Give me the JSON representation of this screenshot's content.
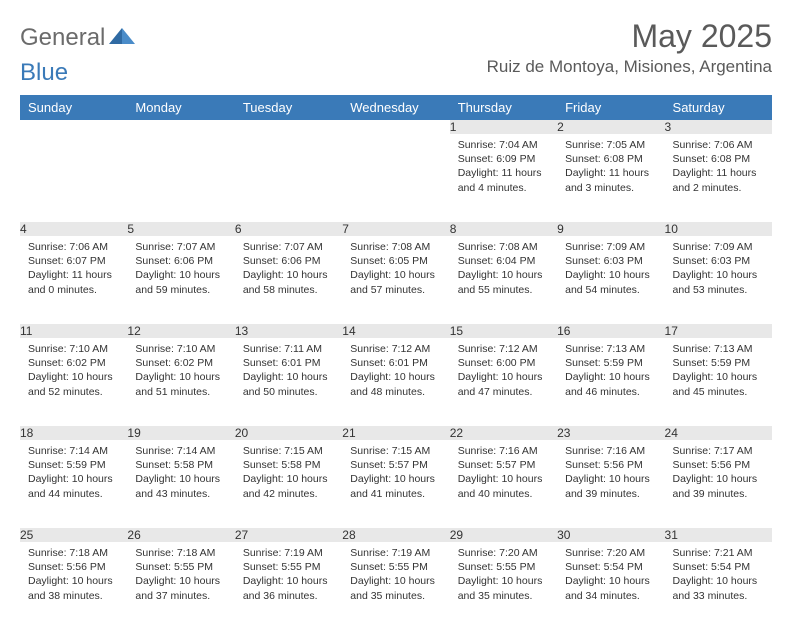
{
  "logo": {
    "text_gray": "General",
    "text_blue": "Blue"
  },
  "title": "May 2025",
  "location": "Ruiz de Montoya, Misiones, Argentina",
  "colors": {
    "header_bg": "#3a7ab8",
    "header_fg": "#ffffff",
    "daynum_bg": "#e8e8e8",
    "text": "#333333",
    "logo_gray": "#6b6b6b",
    "logo_blue": "#3a7ab8"
  },
  "weekdays": [
    "Sunday",
    "Monday",
    "Tuesday",
    "Wednesday",
    "Thursday",
    "Friday",
    "Saturday"
  ],
  "weeks": [
    [
      null,
      null,
      null,
      null,
      {
        "num": "1",
        "sunrise": "7:04 AM",
        "sunset": "6:09 PM",
        "daylight": "11 hours and 4 minutes."
      },
      {
        "num": "2",
        "sunrise": "7:05 AM",
        "sunset": "6:08 PM",
        "daylight": "11 hours and 3 minutes."
      },
      {
        "num": "3",
        "sunrise": "7:06 AM",
        "sunset": "6:08 PM",
        "daylight": "11 hours and 2 minutes."
      }
    ],
    [
      {
        "num": "4",
        "sunrise": "7:06 AM",
        "sunset": "6:07 PM",
        "daylight": "11 hours and 0 minutes."
      },
      {
        "num": "5",
        "sunrise": "7:07 AM",
        "sunset": "6:06 PM",
        "daylight": "10 hours and 59 minutes."
      },
      {
        "num": "6",
        "sunrise": "7:07 AM",
        "sunset": "6:06 PM",
        "daylight": "10 hours and 58 minutes."
      },
      {
        "num": "7",
        "sunrise": "7:08 AM",
        "sunset": "6:05 PM",
        "daylight": "10 hours and 57 minutes."
      },
      {
        "num": "8",
        "sunrise": "7:08 AM",
        "sunset": "6:04 PM",
        "daylight": "10 hours and 55 minutes."
      },
      {
        "num": "9",
        "sunrise": "7:09 AM",
        "sunset": "6:03 PM",
        "daylight": "10 hours and 54 minutes."
      },
      {
        "num": "10",
        "sunrise": "7:09 AM",
        "sunset": "6:03 PM",
        "daylight": "10 hours and 53 minutes."
      }
    ],
    [
      {
        "num": "11",
        "sunrise": "7:10 AM",
        "sunset": "6:02 PM",
        "daylight": "10 hours and 52 minutes."
      },
      {
        "num": "12",
        "sunrise": "7:10 AM",
        "sunset": "6:02 PM",
        "daylight": "10 hours and 51 minutes."
      },
      {
        "num": "13",
        "sunrise": "7:11 AM",
        "sunset": "6:01 PM",
        "daylight": "10 hours and 50 minutes."
      },
      {
        "num": "14",
        "sunrise": "7:12 AM",
        "sunset": "6:01 PM",
        "daylight": "10 hours and 48 minutes."
      },
      {
        "num": "15",
        "sunrise": "7:12 AM",
        "sunset": "6:00 PM",
        "daylight": "10 hours and 47 minutes."
      },
      {
        "num": "16",
        "sunrise": "7:13 AM",
        "sunset": "5:59 PM",
        "daylight": "10 hours and 46 minutes."
      },
      {
        "num": "17",
        "sunrise": "7:13 AM",
        "sunset": "5:59 PM",
        "daylight": "10 hours and 45 minutes."
      }
    ],
    [
      {
        "num": "18",
        "sunrise": "7:14 AM",
        "sunset": "5:59 PM",
        "daylight": "10 hours and 44 minutes."
      },
      {
        "num": "19",
        "sunrise": "7:14 AM",
        "sunset": "5:58 PM",
        "daylight": "10 hours and 43 minutes."
      },
      {
        "num": "20",
        "sunrise": "7:15 AM",
        "sunset": "5:58 PM",
        "daylight": "10 hours and 42 minutes."
      },
      {
        "num": "21",
        "sunrise": "7:15 AM",
        "sunset": "5:57 PM",
        "daylight": "10 hours and 41 minutes."
      },
      {
        "num": "22",
        "sunrise": "7:16 AM",
        "sunset": "5:57 PM",
        "daylight": "10 hours and 40 minutes."
      },
      {
        "num": "23",
        "sunrise": "7:16 AM",
        "sunset": "5:56 PM",
        "daylight": "10 hours and 39 minutes."
      },
      {
        "num": "24",
        "sunrise": "7:17 AM",
        "sunset": "5:56 PM",
        "daylight": "10 hours and 39 minutes."
      }
    ],
    [
      {
        "num": "25",
        "sunrise": "7:18 AM",
        "sunset": "5:56 PM",
        "daylight": "10 hours and 38 minutes."
      },
      {
        "num": "26",
        "sunrise": "7:18 AM",
        "sunset": "5:55 PM",
        "daylight": "10 hours and 37 minutes."
      },
      {
        "num": "27",
        "sunrise": "7:19 AM",
        "sunset": "5:55 PM",
        "daylight": "10 hours and 36 minutes."
      },
      {
        "num": "28",
        "sunrise": "7:19 AM",
        "sunset": "5:55 PM",
        "daylight": "10 hours and 35 minutes."
      },
      {
        "num": "29",
        "sunrise": "7:20 AM",
        "sunset": "5:55 PM",
        "daylight": "10 hours and 35 minutes."
      },
      {
        "num": "30",
        "sunrise": "7:20 AM",
        "sunset": "5:54 PM",
        "daylight": "10 hours and 34 minutes."
      },
      {
        "num": "31",
        "sunrise": "7:21 AM",
        "sunset": "5:54 PM",
        "daylight": "10 hours and 33 minutes."
      }
    ]
  ],
  "labels": {
    "sunrise": "Sunrise:",
    "sunset": "Sunset:",
    "daylight": "Daylight:"
  }
}
